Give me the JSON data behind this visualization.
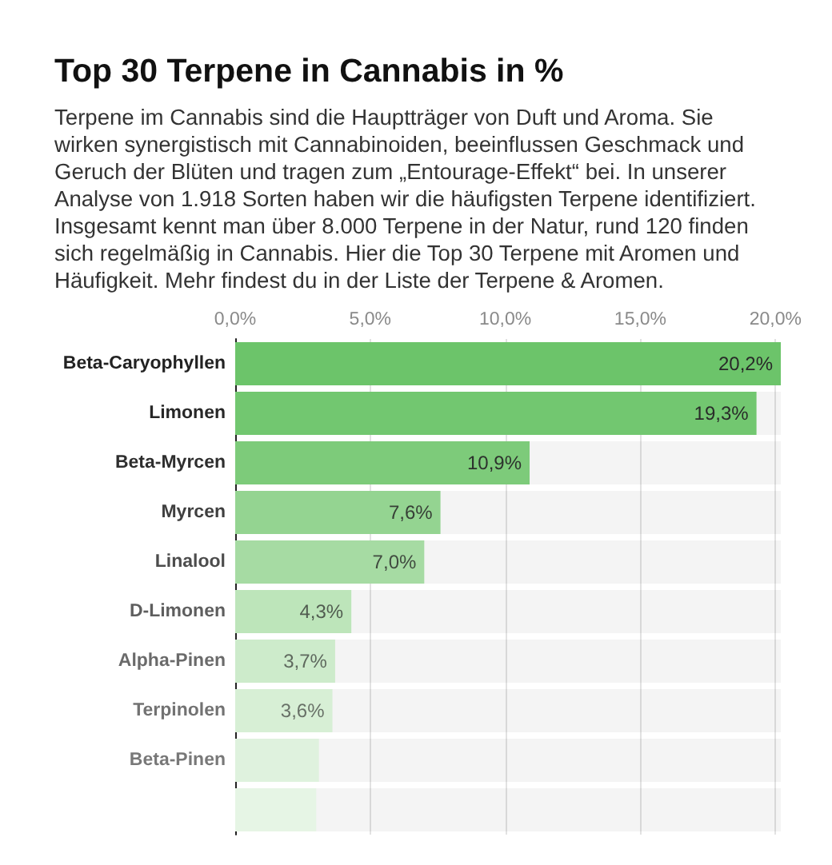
{
  "chart_data": {
    "type": "bar",
    "orientation": "horizontal",
    "title": "Top 30 Terpene in Cannabis in %",
    "subtitle": "Terpene im Cannabis sind die Hauptträger von Duft und Aroma. Sie wirken synergistisch mit Cannabinoiden, beeinflussen Geschmack und Geruch der Blüten und tragen zum „Entourage-Effekt“ bei. In unserer Analyse von 1.918 Sorten haben wir die häufigsten Terpene identifiziert. Insgesamt kennt man über 8.000 Terpene in der Natur, rund 120 finden sich regelmäßig in Cannabis. Hier die Top 30 Terpene mit Aromen und Häufigkeit. Mehr findest du in der Liste der Terpene & Aromen.",
    "categories": [
      "Beta-Caryophyllen",
      "Limonen",
      "Beta-Myrcen",
      "Myrcen",
      "Linalool",
      "D-Limonen",
      "Alpha-Pinen",
      "Terpinolen",
      "Beta-Pinen",
      null
    ],
    "values": [
      20.2,
      19.3,
      10.9,
      7.6,
      7.0,
      4.3,
      3.7,
      3.6,
      3.1,
      3.0
    ],
    "colors": [
      "#6cc46a",
      "#72c770",
      "#7dcb7a",
      "#94d491",
      "#a6dba3",
      "#bde5ba",
      "#cdebcb",
      "#d7efd5",
      "#dff2de",
      "#e6f5e5"
    ],
    "value_labels": [
      "20,2%",
      "19,3%",
      "10,9%",
      "7,6%",
      "7,0%",
      "4,3%",
      "3,7%",
      "3,6%",
      null,
      null
    ],
    "xlim": [
      0,
      20.2
    ],
    "xticks": [
      {
        "value": 0,
        "label": "0,0%"
      },
      {
        "value": 5,
        "label": "5,0%"
      },
      {
        "value": 10,
        "label": "10,0%"
      },
      {
        "value": 15,
        "label": "15,0%"
      },
      {
        "value": 20,
        "label": "20,0%"
      }
    ],
    "grid": "x"
  }
}
